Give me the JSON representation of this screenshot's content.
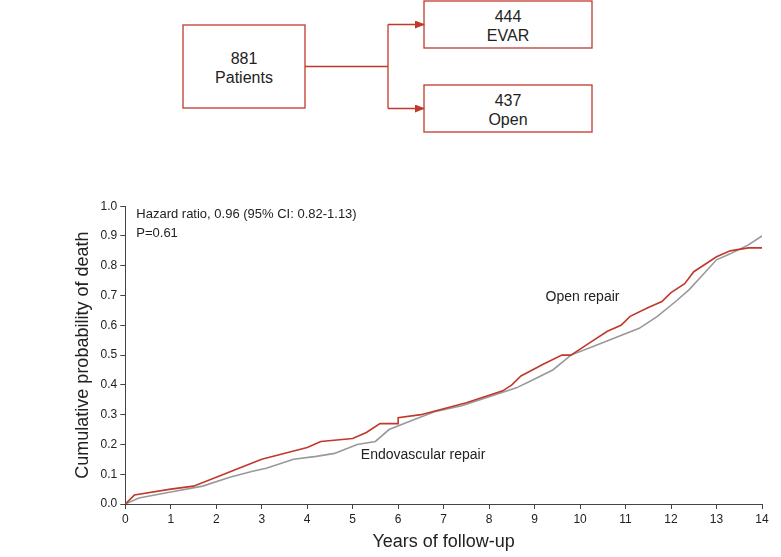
{
  "diagram": {
    "nodes": [
      {
        "count": 881,
        "label": "Patients"
      },
      {
        "count": 444,
        "label": "EVAR"
      },
      {
        "count": 437,
        "label": "Open"
      }
    ],
    "color": "#c0392b"
  },
  "chart_data": {
    "type": "line",
    "x_label": "Years of follow-up",
    "y_label": "Cumulative probability of death",
    "annotations": [
      "Hazard ratio, 0.96 (95% CI: 0.82-1.13)",
      "P=0.61"
    ],
    "series": [
      {
        "name": "Open repair",
        "color": "#c0392b",
        "x": [
          0,
          0.2,
          1,
          1.5,
          2,
          2.5,
          3,
          4,
          4.3,
          5,
          5.3,
          5.6,
          6,
          6,
          6.5,
          7,
          7.5,
          8.3,
          8.5,
          8.7,
          9.2,
          9.6,
          9.8,
          10.2,
          10.6,
          10.9,
          11.1,
          11.5,
          11.8,
          12,
          12.3,
          12.5,
          12.8,
          13,
          13.3,
          13.7,
          14
        ],
        "values": [
          0,
          0.03,
          0.05,
          0.06,
          0.09,
          0.12,
          0.15,
          0.19,
          0.21,
          0.22,
          0.24,
          0.27,
          0.27,
          0.29,
          0.3,
          0.32,
          0.34,
          0.38,
          0.4,
          0.43,
          0.47,
          0.5,
          0.5,
          0.54,
          0.58,
          0.6,
          0.63,
          0.66,
          0.68,
          0.71,
          0.74,
          0.78,
          0.81,
          0.83,
          0.85,
          0.86,
          0.86
        ]
      },
      {
        "name": "Endovascular repair",
        "color": "#999999",
        "x": [
          0,
          0.3,
          1,
          1.7,
          2.3,
          2.8,
          3.1,
          3.7,
          4.2,
          4.6,
          5.1,
          5.5,
          5.8,
          6.3,
          6.8,
          7.4,
          8,
          8.6,
          9,
          9.4,
          9.8,
          10.3,
          10.8,
          11.3,
          11.7,
          12.1,
          12.4,
          12.7,
          13,
          13.3,
          13.7,
          14
        ],
        "values": [
          0,
          0.02,
          0.04,
          0.06,
          0.09,
          0.11,
          0.12,
          0.15,
          0.16,
          0.17,
          0.2,
          0.21,
          0.25,
          0.28,
          0.31,
          0.33,
          0.36,
          0.39,
          0.42,
          0.45,
          0.5,
          0.53,
          0.56,
          0.59,
          0.63,
          0.68,
          0.72,
          0.77,
          0.82,
          0.84,
          0.87,
          0.9
        ]
      }
    ],
    "xlim": [
      0,
      14
    ],
    "xticks": [
      0,
      1,
      2,
      3,
      4,
      5,
      6,
      7,
      8,
      9,
      10,
      11,
      12,
      13,
      14
    ],
    "ylim": [
      0,
      1
    ],
    "yticks": [
      {
        "value": 0,
        "label": "0.0"
      },
      0.1,
      0.2,
      0.3,
      0.4,
      0.5,
      0.6,
      0.7,
      0.8,
      0.9,
      {
        "value": 1,
        "label": "1.0"
      }
    ],
    "grid": false
  }
}
